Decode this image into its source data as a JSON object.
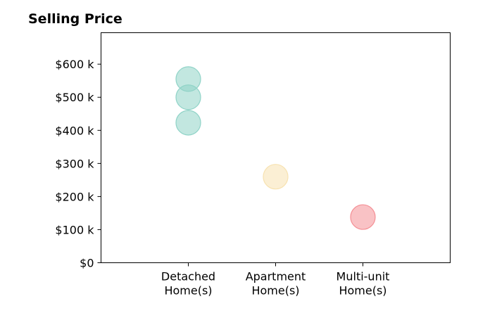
{
  "chart_data": {
    "type": "scatter",
    "title": "Selling Price",
    "xlabel": "",
    "ylabel": "",
    "categories": [
      [
        "Detached",
        "Home(s)"
      ],
      [
        "Apartment",
        "Home(s)"
      ],
      [
        "Multi-unit",
        "Home(s)"
      ]
    ],
    "y_ticks": [
      {
        "value": 0,
        "label": "$0"
      },
      {
        "value": 100,
        "label": "$100 k"
      },
      {
        "value": 200,
        "label": "$200 k"
      },
      {
        "value": 300,
        "label": "$300 k"
      },
      {
        "value": 400,
        "label": "$400 k"
      },
      {
        "value": 500,
        "label": "$500 k"
      },
      {
        "value": 600,
        "label": "$600 k"
      }
    ],
    "y_unit": "$ thousands",
    "ylim": [
      0,
      695
    ],
    "xlim": [
      -1,
      3
    ],
    "grid": false,
    "points": [
      {
        "category": 0,
        "y": 555,
        "color": "#8fd3c7"
      },
      {
        "category": 0,
        "y": 500,
        "color": "#8fd3c7"
      },
      {
        "category": 0,
        "y": 423,
        "color": "#8fd3c7"
      },
      {
        "category": 1,
        "y": 260,
        "color": "#f7e2b0"
      },
      {
        "category": 2,
        "y": 138,
        "color": "#f48f95"
      }
    ]
  }
}
